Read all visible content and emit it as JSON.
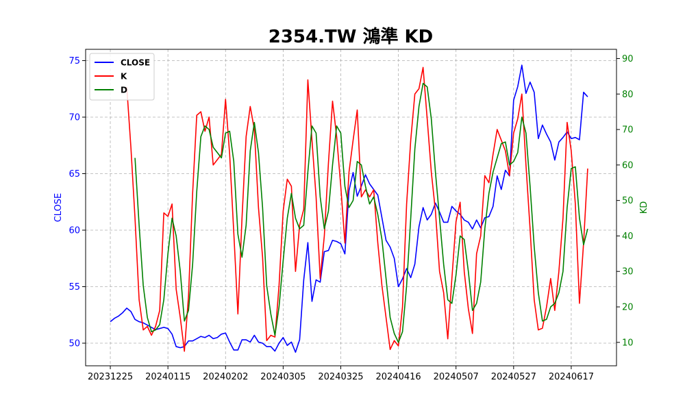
{
  "chart_data": {
    "type": "line",
    "title": "2354.TW 鴻準 KD",
    "xlabel": "",
    "y_left_label": "CLOSE",
    "y_right_label": "KD",
    "y_left_lim": [
      48,
      76
    ],
    "y_right_lim": [
      3.4,
      92.6
    ],
    "y_left_ticks": [
      50,
      55,
      60,
      65,
      70,
      75
    ],
    "y_right_ticks": [
      10,
      20,
      30,
      40,
      50,
      60,
      70,
      80,
      90
    ],
    "x_tick_labels": [
      "20231225",
      "20240115",
      "20240202",
      "20240305",
      "20240325",
      "20240416",
      "20240507",
      "20240527",
      "20240617"
    ],
    "x_tick_index": [
      0,
      14,
      28,
      42,
      56,
      70,
      84,
      98,
      112
    ],
    "x_lim": [
      -6,
      123
    ],
    "grid": true,
    "legend_position": "top-left",
    "colors": {
      "close": "#0000ff",
      "k": "#ff0000",
      "d": "#008000",
      "left_axis": "#0000ff",
      "right_axis": "#008000"
    },
    "series": [
      {
        "name": "CLOSE",
        "axis": "left",
        "color": "#0000ff",
        "values": [
          51.9,
          52.2,
          52.4,
          52.7,
          53.1,
          52.8,
          52.1,
          51.9,
          51.8,
          51.6,
          51.4,
          51.2,
          51.3,
          51.4,
          51.3,
          50.8,
          49.7,
          49.6,
          49.7,
          50.2,
          50.2,
          50.4,
          50.6,
          50.5,
          50.7,
          50.4,
          50.5,
          50.8,
          50.9,
          50.1,
          49.4,
          49.4,
          50.3,
          50.3,
          50.1,
          50.7,
          50.1,
          50.0,
          49.7,
          49.7,
          49.3,
          50.0,
          50.5,
          49.8,
          50.1,
          49.2,
          50.3,
          55.6,
          58.9,
          53.7,
          55.6,
          55.4,
          58.1,
          58.2,
          59.1,
          59.0,
          58.8,
          57.9,
          63.5,
          65.1,
          63.0,
          63.9,
          64.9,
          64.1,
          63.6,
          63.1,
          61.1,
          59.1,
          58.5,
          57.5,
          55.0,
          55.7,
          56.6,
          55.8,
          57.0,
          60.3,
          62.0,
          60.9,
          61.4,
          62.4,
          61.6,
          60.7,
          60.7,
          62.1,
          61.7,
          61.4,
          60.9,
          60.7,
          60.1,
          60.9,
          60.2,
          61.1,
          61.2,
          62.1,
          64.8,
          63.6,
          65.3,
          64.8,
          71.5,
          72.7,
          74.6,
          72.1,
          73.1,
          72.2,
          68.1,
          69.3,
          68.5,
          67.8,
          66.2,
          67.8,
          68.2,
          68.7,
          68.1,
          68.2,
          68.0,
          72.2,
          71.8
        ]
      },
      {
        "name": "K",
        "axis": "right",
        "color": "#ff0000",
        "values": [
          null,
          null,
          null,
          null,
          82.0,
          65.0,
          45.0,
          22.0,
          13.5,
          14.5,
          12.0,
          14.5,
          19.0,
          46.5,
          45.5,
          49.0,
          25.0,
          17.0,
          7.5,
          23.0,
          52.0,
          74.0,
          75.0,
          69.5,
          73.5,
          60.0,
          61.5,
          63.0,
          78.5,
          63.0,
          41.0,
          18.0,
          45.0,
          68.0,
          76.5,
          70.0,
          48.0,
          34.0,
          10.5,
          12.0,
          11.5,
          26.0,
          47.0,
          56.0,
          54.0,
          30.0,
          43.0,
          47.5,
          84.0,
          67.0,
          51.0,
          28.0,
          40.0,
          60.5,
          78.0,
          68.0,
          54.0,
          38.0,
          58.0,
          67.0,
          75.5,
          51.0,
          53.0,
          51.0,
          53.0,
          38.0,
          26.0,
          17.0,
          8.0,
          10.5,
          9.0,
          20.0,
          49.0,
          67.0,
          80.0,
          81.5,
          87.5,
          73.0,
          58.0,
          47.0,
          30.0,
          24.0,
          11.0,
          28.0,
          44.0,
          49.5,
          30.0,
          19.5,
          12.5,
          35.0,
          40.0,
          57.0,
          55.0,
          63.0,
          70.0,
          67.0,
          64.0,
          57.0,
          69.0,
          73.0,
          80.0,
          60.0,
          42.0,
          22.0,
          13.5,
          14.0,
          20.0,
          28.0,
          19.0,
          30.0,
          45.0,
          72.0,
          64.0,
          49.0,
          21.0,
          38.0,
          59.0
        ]
      },
      {
        "name": "D",
        "axis": "right",
        "color": "#008000",
        "values": [
          null,
          null,
          null,
          null,
          null,
          null,
          62.0,
          43.0,
          26.0,
          17.0,
          13.0,
          13.5,
          15.0,
          22.0,
          35.0,
          45.0,
          40.0,
          30.0,
          16.0,
          19.0,
          32.0,
          52.5,
          68.0,
          71.0,
          70.0,
          65.0,
          63.5,
          62.0,
          69.0,
          69.5,
          61.0,
          40.5,
          34.0,
          43.0,
          64.0,
          72.0,
          63.5,
          48.0,
          26.0,
          18.0,
          12.0,
          20.0,
          33.0,
          45.0,
          52.0,
          45.0,
          42.0,
          43.0,
          58.0,
          71.0,
          69.0,
          51.0,
          42.0,
          47.0,
          60.0,
          71.0,
          69.0,
          54.0,
          48.0,
          50.0,
          61.0,
          60.0,
          54.0,
          49.0,
          51.0,
          46.0,
          39.0,
          28.0,
          17.0,
          12.5,
          10.0,
          13.0,
          26.0,
          45.0,
          64.5,
          76.5,
          83.0,
          82.0,
          73.0,
          58.0,
          45.0,
          32.0,
          22.0,
          21.0,
          29.0,
          40.0,
          39.0,
          30.0,
          19.0,
          21.0,
          27.0,
          42.0,
          52.0,
          58.0,
          62.0,
          66.0,
          66.5,
          60.0,
          61.0,
          63.5,
          73.5,
          69.0,
          54.0,
          37.0,
          24.0,
          16.0,
          16.5,
          20.0,
          21.0,
          24.0,
          30.0,
          48.0,
          59.0,
          59.5,
          45.0,
          37.5,
          42.0
        ]
      }
    ]
  }
}
